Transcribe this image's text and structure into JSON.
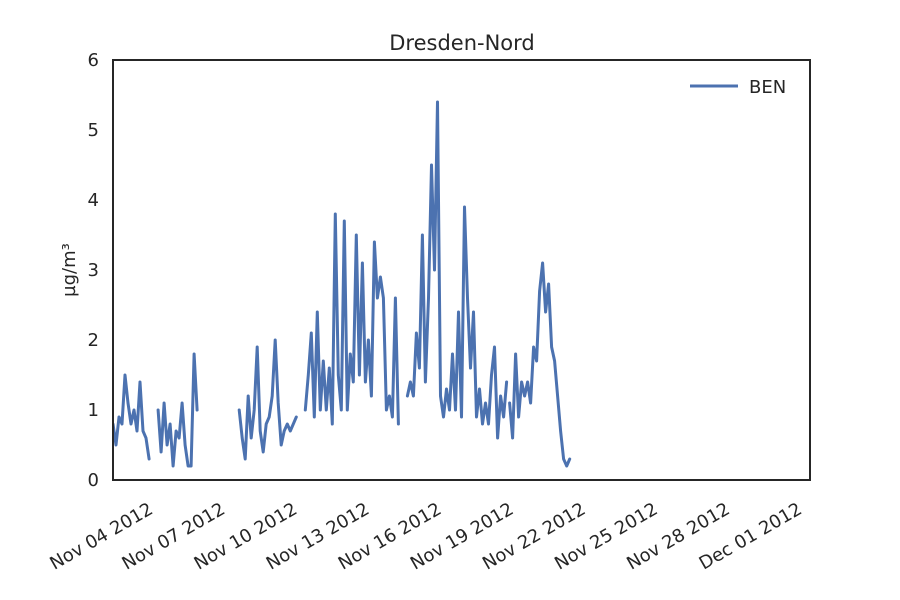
{
  "chart_data": {
    "type": "line",
    "title": "Dresden-Nord",
    "xlabel": "",
    "ylabel": "µg/m³",
    "ylim": [
      0,
      6
    ],
    "yticks": [
      0,
      1,
      2,
      3,
      4,
      5,
      6
    ],
    "ytick_labels": [
      "0",
      "1",
      "2",
      "3",
      "4",
      "5",
      "6"
    ],
    "xlim": [
      "2012-11-03",
      "2012-12-02"
    ],
    "xticks": [
      "2012-11-04",
      "2012-11-07",
      "2012-11-10",
      "2012-11-13",
      "2012-11-16",
      "2012-11-19",
      "2012-11-22",
      "2012-11-25",
      "2012-11-28",
      "2012-12-01"
    ],
    "xtick_labels": [
      "Nov 04 2012",
      "Nov 07 2012",
      "Nov 10 2012",
      "Nov 13 2012",
      "Nov 16 2012",
      "Nov 19 2012",
      "Nov 22 2012",
      "Nov 25 2012",
      "Nov 28 2012",
      "Dec 01 2012"
    ],
    "grid": false,
    "legend_position": "top-right",
    "series": [
      {
        "name": "BEN",
        "color": "#4c72b0",
        "segments": [
          [
            [
              "2012-11-03 00:00",
              0.8
            ],
            [
              "2012-11-03 03:00",
              0.5
            ],
            [
              "2012-11-03 06:00",
              0.9
            ],
            [
              "2012-11-03 09:00",
              0.8
            ],
            [
              "2012-11-03 12:00",
              1.5
            ],
            [
              "2012-11-03 15:00",
              1.1
            ],
            [
              "2012-11-03 18:00",
              0.8
            ],
            [
              "2012-11-03 21:00",
              1.0
            ],
            [
              "2012-11-04 00:00",
              0.7
            ],
            [
              "2012-11-04 03:00",
              1.4
            ],
            [
              "2012-11-04 06:00",
              0.7
            ],
            [
              "2012-11-04 09:00",
              0.6
            ],
            [
              "2012-11-04 12:00",
              0.3
            ]
          ],
          [
            [
              "2012-11-04 21:00",
              1.0
            ],
            [
              "2012-11-05 00:00",
              0.4
            ],
            [
              "2012-11-05 03:00",
              1.1
            ],
            [
              "2012-11-05 06:00",
              0.5
            ],
            [
              "2012-11-05 09:00",
              0.8
            ],
            [
              "2012-11-05 12:00",
              0.2
            ],
            [
              "2012-11-05 15:00",
              0.7
            ],
            [
              "2012-11-05 18:00",
              0.6
            ],
            [
              "2012-11-05 21:00",
              1.1
            ],
            [
              "2012-11-06 00:00",
              0.5
            ],
            [
              "2012-11-06 03:00",
              0.2
            ],
            [
              "2012-11-06 06:00",
              0.2
            ],
            [
              "2012-11-06 09:00",
              1.8
            ],
            [
              "2012-11-06 12:00",
              1.0
            ]
          ],
          [
            [
              "2012-11-08 06:00",
              1.0
            ],
            [
              "2012-11-08 09:00",
              0.6
            ],
            [
              "2012-11-08 12:00",
              0.3
            ],
            [
              "2012-11-08 15:00",
              1.2
            ],
            [
              "2012-11-08 18:00",
              0.6
            ],
            [
              "2012-11-08 21:00",
              1.0
            ],
            [
              "2012-11-09 00:00",
              1.9
            ],
            [
              "2012-11-09 03:00",
              0.7
            ],
            [
              "2012-11-09 06:00",
              0.4
            ],
            [
              "2012-11-09 09:00",
              0.8
            ],
            [
              "2012-11-09 12:00",
              0.9
            ],
            [
              "2012-11-09 15:00",
              1.2
            ],
            [
              "2012-11-09 18:00",
              2.0
            ],
            [
              "2012-11-09 21:00",
              1.1
            ],
            [
              "2012-11-10 00:00",
              0.5
            ],
            [
              "2012-11-10 03:00",
              0.7
            ],
            [
              "2012-11-10 06:00",
              0.8
            ],
            [
              "2012-11-10 09:00",
              0.7
            ],
            [
              "2012-11-10 12:00",
              0.8
            ],
            [
              "2012-11-10 15:00",
              0.9
            ]
          ],
          [
            [
              "2012-11-11 00:00",
              1.0
            ],
            [
              "2012-11-11 03:00",
              1.5
            ],
            [
              "2012-11-11 06:00",
              2.1
            ],
            [
              "2012-11-11 09:00",
              0.9
            ],
            [
              "2012-11-11 12:00",
              2.4
            ],
            [
              "2012-11-11 15:00",
              1.0
            ],
            [
              "2012-11-11 18:00",
              1.7
            ],
            [
              "2012-11-11 21:00",
              1.0
            ],
            [
              "2012-11-12 00:00",
              1.6
            ],
            [
              "2012-11-12 03:00",
              0.8
            ],
            [
              "2012-11-12 06:00",
              3.8
            ],
            [
              "2012-11-12 09:00",
              1.5
            ],
            [
              "2012-11-12 12:00",
              1.0
            ],
            [
              "2012-11-12 15:00",
              3.7
            ],
            [
              "2012-11-12 18:00",
              1.0
            ],
            [
              "2012-11-12 21:00",
              1.8
            ],
            [
              "2012-11-13 00:00",
              1.4
            ],
            [
              "2012-11-13 03:00",
              3.5
            ],
            [
              "2012-11-13 06:00",
              1.5
            ],
            [
              "2012-11-13 09:00",
              3.1
            ],
            [
              "2012-11-13 12:00",
              1.4
            ],
            [
              "2012-11-13 15:00",
              2.0
            ],
            [
              "2012-11-13 18:00",
              1.2
            ],
            [
              "2012-11-13 21:00",
              3.4
            ],
            [
              "2012-11-14 00:00",
              2.6
            ],
            [
              "2012-11-14 03:00",
              2.9
            ],
            [
              "2012-11-14 06:00",
              2.6
            ],
            [
              "2012-11-14 09:00",
              1.0
            ],
            [
              "2012-11-14 12:00",
              1.2
            ],
            [
              "2012-11-14 15:00",
              0.9
            ],
            [
              "2012-11-14 18:00",
              2.6
            ],
            [
              "2012-11-14 21:00",
              0.8
            ]
          ],
          [
            [
              "2012-11-15 06:00",
              1.2
            ],
            [
              "2012-11-15 09:00",
              1.4
            ],
            [
              "2012-11-15 12:00",
              1.2
            ],
            [
              "2012-11-15 15:00",
              2.1
            ],
            [
              "2012-11-15 18:00",
              1.6
            ],
            [
              "2012-11-15 21:00",
              3.5
            ],
            [
              "2012-11-16 00:00",
              1.4
            ],
            [
              "2012-11-16 03:00",
              2.6
            ],
            [
              "2012-11-16 06:00",
              4.5
            ],
            [
              "2012-11-16 09:00",
              3.0
            ],
            [
              "2012-11-16 12:00",
              5.4
            ],
            [
              "2012-11-16 15:00",
              1.2
            ],
            [
              "2012-11-16 18:00",
              0.9
            ],
            [
              "2012-11-16 21:00",
              1.3
            ],
            [
              "2012-11-17 00:00",
              1.0
            ],
            [
              "2012-11-17 03:00",
              1.8
            ],
            [
              "2012-11-17 06:00",
              1.0
            ],
            [
              "2012-11-17 09:00",
              2.4
            ],
            [
              "2012-11-17 12:00",
              0.9
            ],
            [
              "2012-11-17 15:00",
              3.9
            ],
            [
              "2012-11-17 18:00",
              2.6
            ],
            [
              "2012-11-17 21:00",
              1.6
            ],
            [
              "2012-11-18 00:00",
              2.4
            ],
            [
              "2012-11-18 03:00",
              0.9
            ],
            [
              "2012-11-18 06:00",
              1.3
            ],
            [
              "2012-11-18 09:00",
              0.8
            ],
            [
              "2012-11-18 12:00",
              1.1
            ],
            [
              "2012-11-18 15:00",
              0.8
            ],
            [
              "2012-11-18 18:00",
              1.5
            ],
            [
              "2012-11-18 21:00",
              1.9
            ],
            [
              "2012-11-19 00:00",
              0.6
            ],
            [
              "2012-11-19 03:00",
              1.2
            ],
            [
              "2012-11-19 06:00",
              0.9
            ],
            [
              "2012-11-19 09:00",
              1.4
            ]
          ],
          [
            [
              "2012-11-19 12:00",
              1.1
            ],
            [
              "2012-11-19 15:00",
              0.6
            ],
            [
              "2012-11-19 18:00",
              1.8
            ],
            [
              "2012-11-19 21:00",
              0.9
            ],
            [
              "2012-11-20 00:00",
              1.4
            ],
            [
              "2012-11-20 03:00",
              1.2
            ],
            [
              "2012-11-20 06:00",
              1.4
            ],
            [
              "2012-11-20 09:00",
              1.1
            ],
            [
              "2012-11-20 12:00",
              1.9
            ],
            [
              "2012-11-20 15:00",
              1.7
            ],
            [
              "2012-11-20 18:00",
              2.7
            ],
            [
              "2012-11-20 21:00",
              3.1
            ],
            [
              "2012-11-21 00:00",
              2.4
            ],
            [
              "2012-11-21 03:00",
              2.8
            ],
            [
              "2012-11-21 06:00",
              1.9
            ],
            [
              "2012-11-21 09:00",
              1.7
            ],
            [
              "2012-11-21 12:00",
              1.2
            ],
            [
              "2012-11-21 15:00",
              0.7
            ],
            [
              "2012-11-21 18:00",
              0.3
            ],
            [
              "2012-11-21 21:00",
              0.2
            ],
            [
              "2012-11-22 00:00",
              0.3
            ]
          ]
        ]
      }
    ]
  }
}
